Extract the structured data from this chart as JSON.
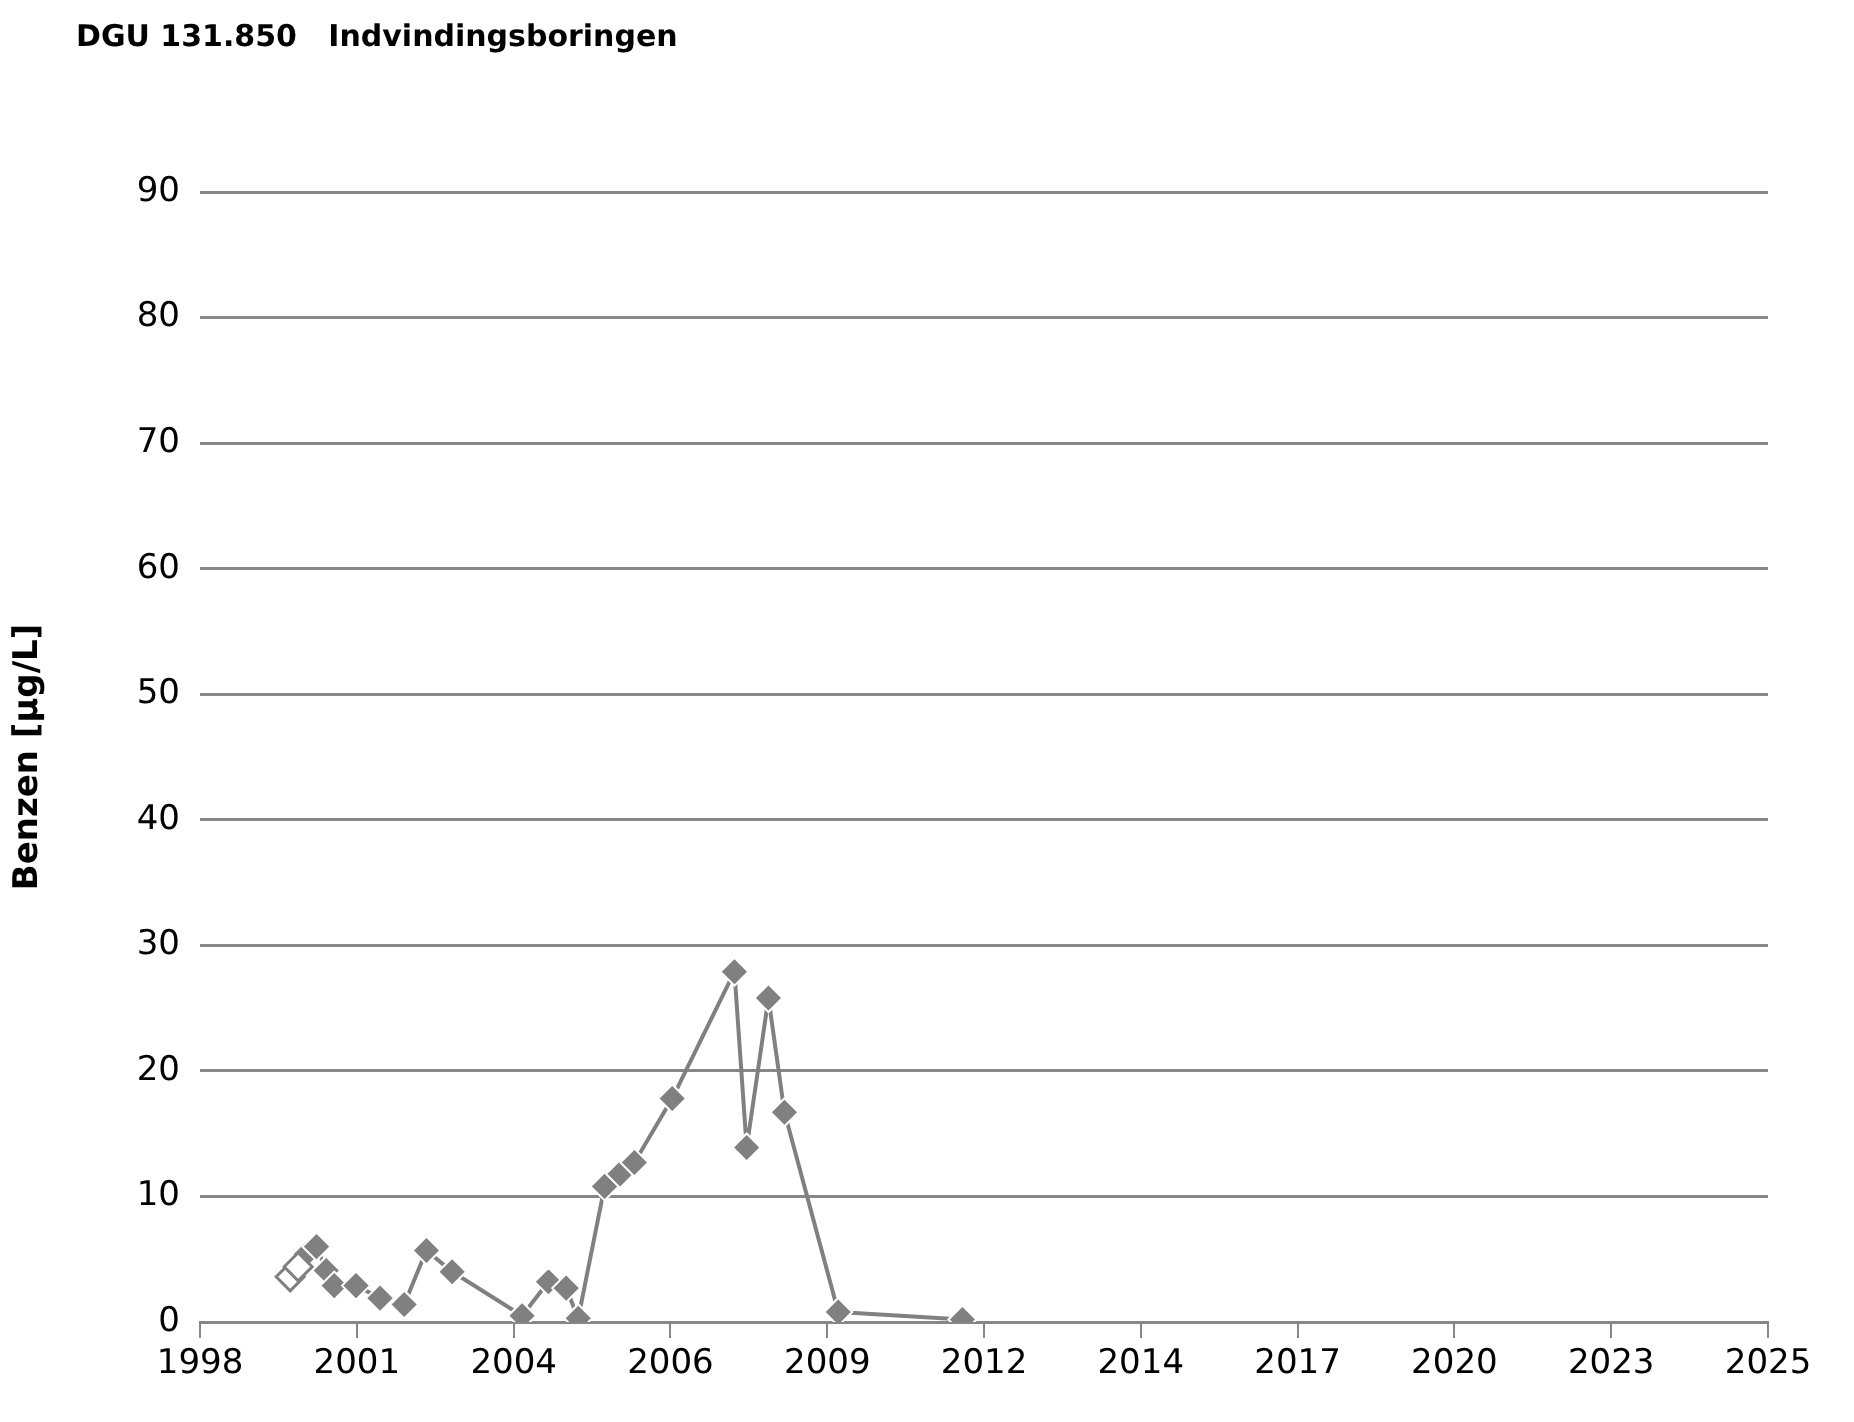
{
  "chart_data": {
    "type": "line",
    "title": "DGU 131.850   Indvindingsboringen",
    "ylabel": "Benzen [µg/L]",
    "series": [
      {
        "type": "scatter",
        "color": "#ffffff",
        "x": [
          "2000-02-14",
          "2000-04-05"
        ],
        "values": [
          3.6,
          4.4
        ]
      },
      {
        "type": "line",
        "color": "#808080",
        "x": [
          "2000-05-26",
          "2000-07-31",
          "2000-10-01",
          "2000-11-21",
          "2001-04-09",
          "2001-09-09",
          "2002-02-10",
          "2002-07-02",
          "2002-12-13",
          "2004-03-03",
          "2004-08-18",
          "2004-12-09",
          "2005-02-24",
          "2005-08-11",
          "2005-11-18",
          "2006-02-17",
          "2006-10-16",
          "2007-11-17",
          "2008-02-03",
          "2008-06-21",
          "2008-10-01",
          "2009-09-09",
          "2011-11-10"
        ],
        "values": [
          5.4,
          6.0,
          4.1,
          2.9,
          2.9,
          1.9,
          1.4,
          5.7,
          4.0,
          0.5,
          3.2,
          2.7,
          0.3,
          10.8,
          11.8,
          12.7,
          17.8,
          27.9,
          13.9,
          25.8,
          16.7,
          0.8,
          0.2
        ]
      }
    ],
    "xlim": [
      "1998-07-19",
      "2025-12-03"
    ],
    "xticks": [
      {
        "value": "1998-07-19",
        "label": "1998"
      },
      {
        "value": "2001-04-14",
        "label": "2001"
      },
      {
        "value": "2004-01-09",
        "label": "2004"
      },
      {
        "value": "2006-10-05",
        "label": "2006"
      },
      {
        "value": "2009-07-01",
        "label": "2009"
      },
      {
        "value": "2012-03-27",
        "label": "2012"
      },
      {
        "value": "2014-12-21",
        "label": "2014"
      },
      {
        "value": "2017-09-16",
        "label": "2017"
      },
      {
        "value": "2020-06-12",
        "label": "2020"
      },
      {
        "value": "2023-03-09",
        "label": "2023"
      },
      {
        "value": "2025-12-03",
        "label": "2025"
      }
    ],
    "ylim": [
      0,
      90
    ],
    "yticks": [
      0,
      10,
      20,
      30,
      40,
      50,
      60,
      70,
      80,
      90
    ],
    "grid": "y",
    "legend": false,
    "marker": "diamond",
    "line_style": "solid"
  }
}
